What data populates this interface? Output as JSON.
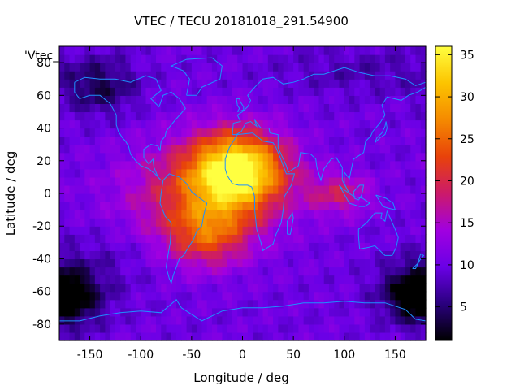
{
  "chart_data": {
    "type": "heatmap",
    "title": "VTEC / TECU 20181018_291.54900",
    "xlabel": "Longitude / deg",
    "ylabel": "Latitude / deg",
    "legend_label": "'Vtec_",
    "xlim": [
      -180,
      180
    ],
    "ylim": [
      -90,
      90
    ],
    "x_ticks": [
      -150,
      -100,
      -50,
      0,
      50,
      100,
      150
    ],
    "y_ticks": [
      -80,
      -60,
      -40,
      -20,
      0,
      20,
      40,
      60,
      80
    ],
    "colorbar": {
      "range": [
        1,
        36
      ],
      "ticks": [
        5,
        10,
        15,
        20,
        25,
        30,
        35
      ],
      "stops": [
        "#000000",
        "#2a007e",
        "#6a00e6",
        "#a100e0",
        "#cc1a6a",
        "#e8420a",
        "#f58a00",
        "#fcc400",
        "#ffff40"
      ]
    },
    "grid_resolution_deg": 5,
    "features": {
      "background_vtec": 10,
      "main_peak": {
        "lon": -5,
        "lat": 15,
        "vtec": 34
      },
      "secondary_peak": {
        "lon": -35,
        "lat": -25,
        "vtec": 24
      },
      "asia_enhancement": {
        "lon": 95,
        "lat": 0,
        "vtec": 18
      },
      "low_regions": [
        {
          "lon": 170,
          "lat": -60,
          "vtec": 2
        },
        {
          "lon": -170,
          "lat": -65,
          "vtec": 3
        },
        {
          "lon": -140,
          "lat": 65,
          "vtec": 4
        }
      ]
    }
  }
}
